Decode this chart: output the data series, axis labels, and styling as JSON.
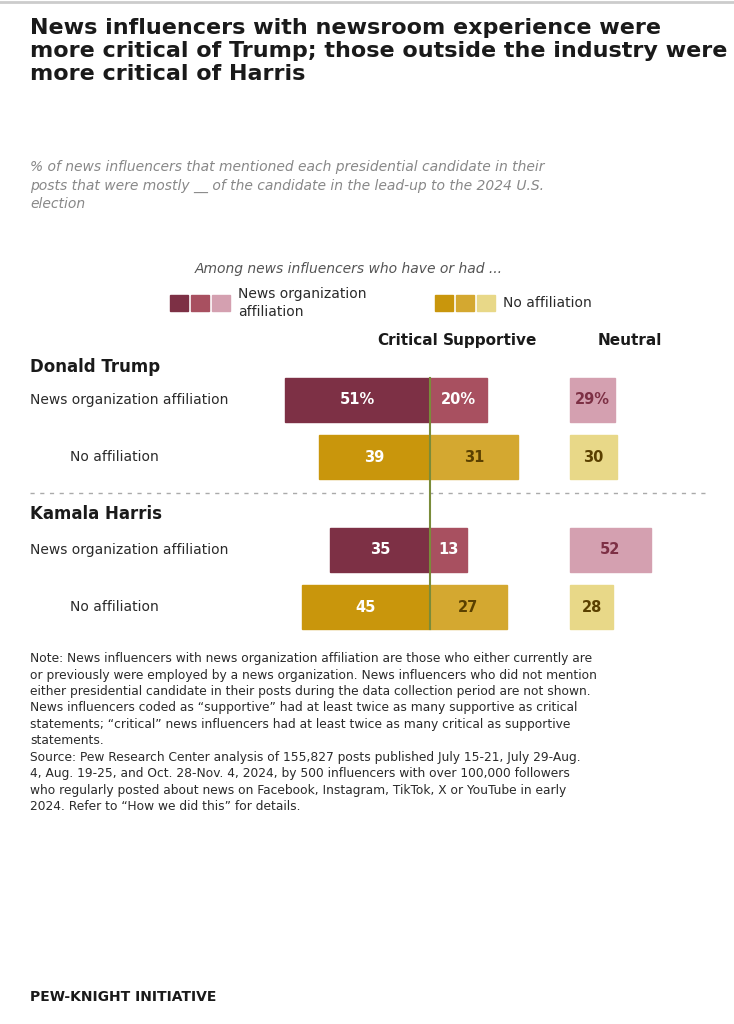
{
  "title": "News influencers with newsroom experience were\nmore critical of Trump; those outside the industry were\nmore critical of Harris",
  "subtitle": "% of news influencers that mentioned each presidential candidate in their\nposts that were mostly __ of the candidate in the lead-up to the 2024 U.S.\nelection",
  "legend_note": "Among news influencers who have or had ...",
  "legend_items": [
    {
      "label": "News organization\naffiliation",
      "colors": [
        "#7d3045",
        "#a85060",
        "#d4a0b0"
      ]
    },
    {
      "label": "No affiliation",
      "colors": [
        "#c9960c",
        "#d4a830",
        "#e8d888"
      ]
    }
  ],
  "sections": [
    {
      "title": "Donald Trump",
      "rows": [
        {
          "label": "News organization affiliation",
          "critical": 51,
          "supportive": 20,
          "neutral": 29,
          "critical_label": "51%",
          "supportive_label": "20%",
          "neutral_label": "29%",
          "colors": [
            "#7d3045",
            "#a85060",
            "#d4a0b0"
          ],
          "text_colors": [
            "#ffffff",
            "#ffffff",
            "#7d3045"
          ]
        },
        {
          "label": "No affiliation",
          "critical": 39,
          "supportive": 31,
          "neutral": 30,
          "critical_label": "39",
          "supportive_label": "31",
          "neutral_label": "30",
          "colors": [
            "#c9960c",
            "#d4a830",
            "#e8d888"
          ],
          "text_colors": [
            "#ffffff",
            "#5a4000",
            "#5a4000"
          ]
        }
      ]
    },
    {
      "title": "Kamala Harris",
      "rows": [
        {
          "label": "News organization affiliation",
          "critical": 35,
          "supportive": 13,
          "neutral": 52,
          "critical_label": "35",
          "supportive_label": "13",
          "neutral_label": "52",
          "colors": [
            "#7d3045",
            "#a85060",
            "#d4a0b0"
          ],
          "text_colors": [
            "#ffffff",
            "#ffffff",
            "#7d3045"
          ]
        },
        {
          "label": "No affiliation",
          "critical": 45,
          "supportive": 27,
          "neutral": 28,
          "critical_label": "45",
          "supportive_label": "27",
          "neutral_label": "28",
          "colors": [
            "#c9960c",
            "#d4a830",
            "#e8d888"
          ],
          "text_colors": [
            "#ffffff",
            "#5a4000",
            "#5a4000"
          ]
        }
      ]
    }
  ],
  "note_text": "Note: News influencers with news organization affiliation are those who either currently are\nor previously were employed by a news organization. News influencers who did not mention\neither presidential candidate in their posts during the data collection period are not shown.\nNews influencers coded as “supportive” had at least twice as many supportive as critical\nstatements; “critical” news influencers had at least twice as many critical as supportive\nstatements.\nSource: Pew Research Center analysis of 155,827 posts published July 15-21, July 29-Aug.\n4, Aug. 19-25, and Oct. 28-Nov. 4, 2024, by 500 influencers with over 100,000 followers\nwho regularly posted about news on Facebook, Instagram, TikTok, X or YouTube in early\n2024. Refer to “How we did this” for details.",
  "footer": "PEW-KNIGHT INITIATIVE",
  "bg_color": "#ffffff"
}
